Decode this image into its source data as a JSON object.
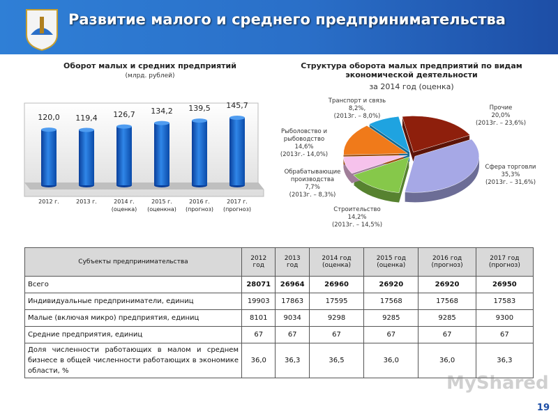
{
  "header": {
    "title": "Развитие малого и среднего предпринимательства"
  },
  "chart_data": [
    {
      "type": "bar",
      "title": "Оборот малых и средних предприятий",
      "subtitle": "(млрд. рублей)",
      "categories": [
        "2012 г.",
        "2013 г.",
        "2014 г. (оценка)",
        "2015 г. (оценкна)",
        "2016 г. (прогноз)",
        "2017 г. (прогноз)"
      ],
      "values": [
        120.0,
        119.4,
        126.7,
        134.2,
        139.5,
        145.7
      ],
      "value_labels": [
        "120,0",
        "119,4",
        "126,7",
        "134,2",
        "139,5",
        "145,7"
      ],
      "color": "#1a66d0"
    },
    {
      "type": "pie",
      "title": "Структура оборота малых предприятий по видам экономической деятельности",
      "subtitle": "за 2014 год (оценка)",
      "categories": [
        "Прочие",
        "Сфера торговли",
        "Строительство",
        "Обрабатывающие производства",
        "Рыболовство и рыбоводство",
        "Транспорт и связь"
      ],
      "values": [
        20.0,
        35.3,
        14.2,
        7.7,
        14.6,
        8.2
      ],
      "value_labels": [
        "20,0%",
        "35,3%",
        "14,2%",
        "7,7%",
        "14,6%",
        "8,2%,"
      ],
      "notes": [
        "(2013г. – 23,6%)",
        "(2013г. – 31,6%)",
        "(2013г. – 14,5%)",
        "(2013г. – 8,3%)",
        "(2013г.- 14,0%)",
        "(2013г. – 8,0%)"
      ],
      "colors": [
        "#8e1f0c",
        "#a6a8e6",
        "#86c84a",
        "#f6c2ec",
        "#f07a1a",
        "#1fa3e0"
      ]
    }
  ],
  "table": {
    "header": [
      "Субъекты предпринимательства",
      "2012 год",
      "2013 год",
      "2014 год (оценка)",
      "2015 год (оценка)",
      "2016 год (прогноз)",
      "2017 год (прогноз)"
    ],
    "rows": [
      [
        "Всего",
        "28071",
        "26964",
        "26960",
        "26920",
        "26920",
        "26950"
      ],
      [
        "Индивидуальные предприниматели, единиц",
        "19903",
        "17863",
        "17595",
        "17568",
        "17568",
        "17583"
      ],
      [
        "Малые (включая микро) предприятия, единиц",
        "8101",
        "9034",
        "9298",
        "9285",
        "9285",
        "9300"
      ],
      [
        "Средние предприятия, единиц",
        "67",
        "67",
        "67",
        "67",
        "67",
        "67"
      ],
      [
        "Доля численности работающих в малом и среднем бизнесе в общей численности работающих в экономике области, %",
        "36,0",
        "36,3",
        "36,5",
        "36,0",
        "36,0",
        "36,3"
      ]
    ]
  },
  "watermark": "MyShared",
  "page_number": "19"
}
